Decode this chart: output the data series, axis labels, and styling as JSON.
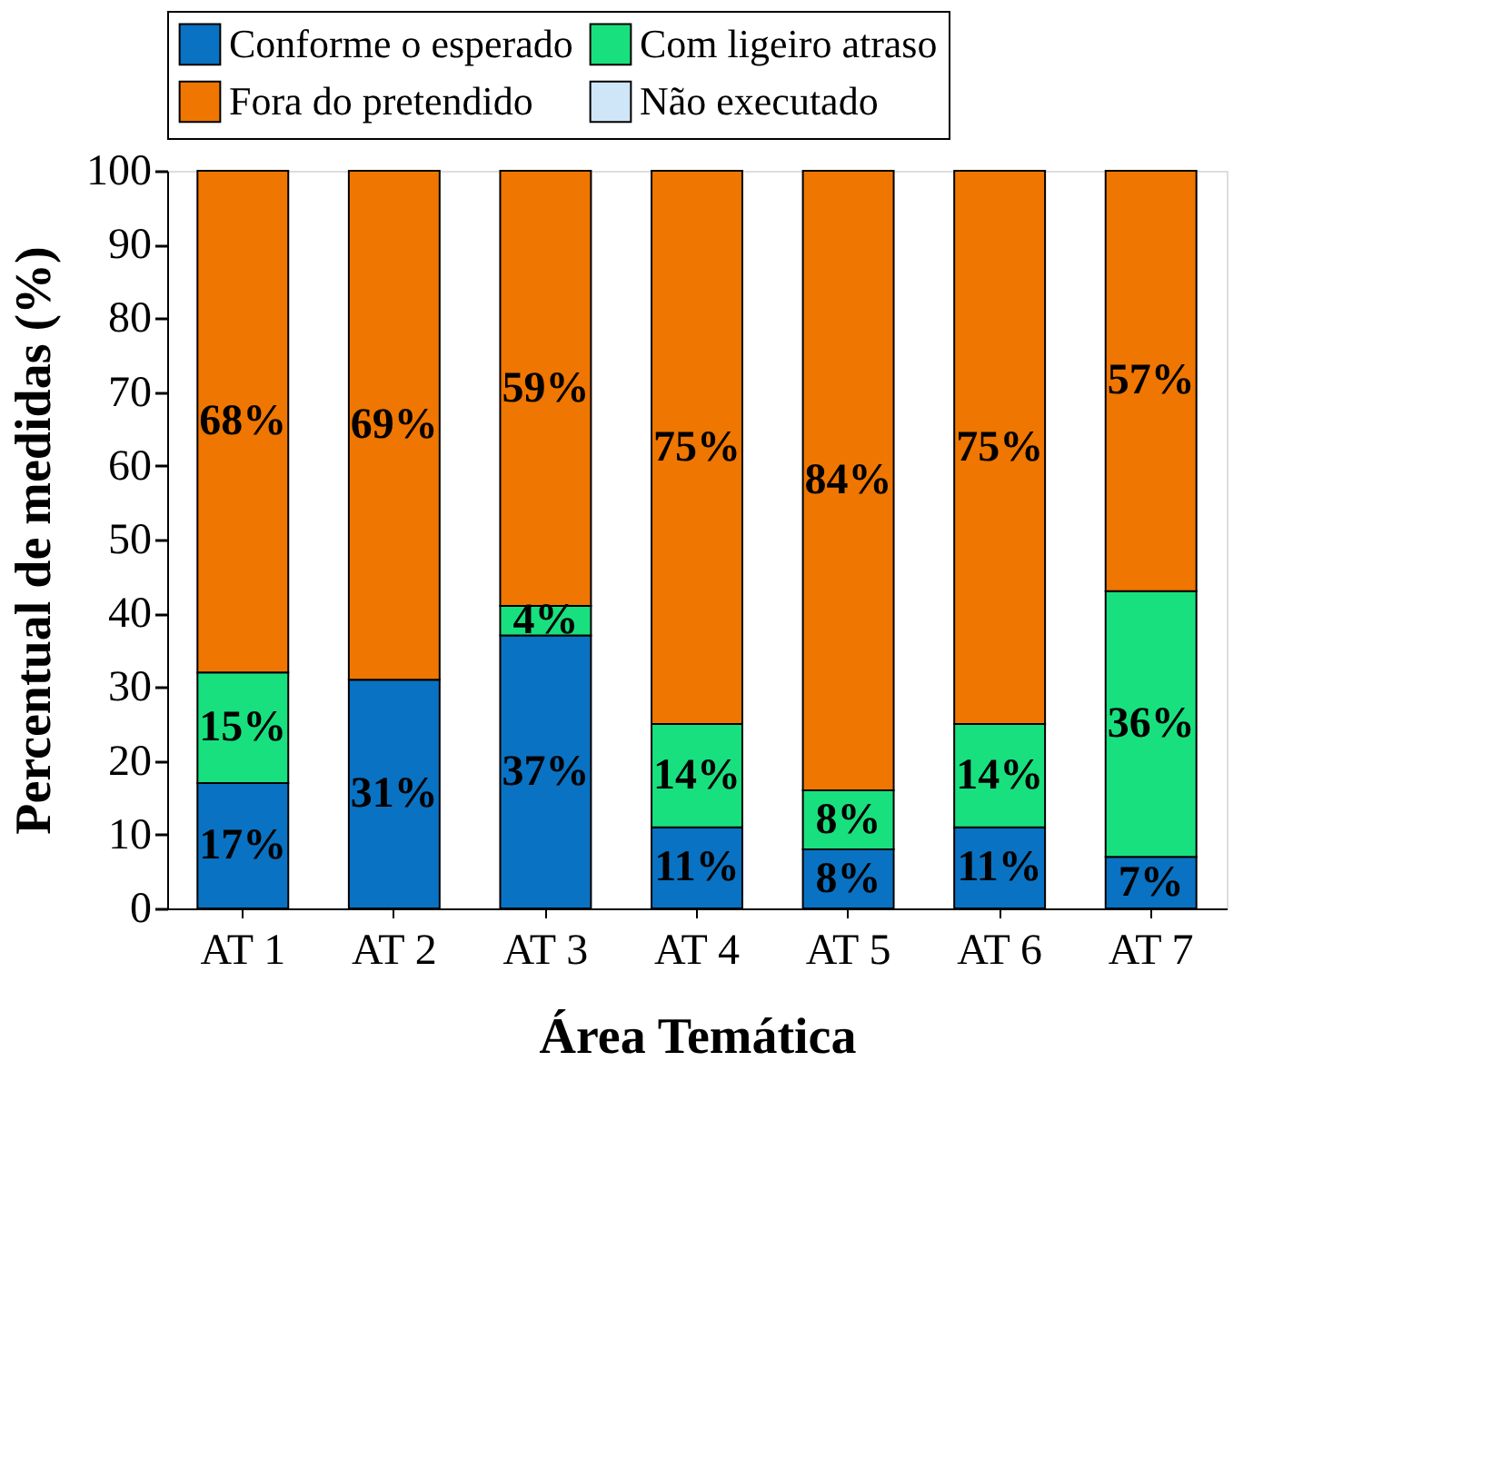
{
  "chart_data": {
    "type": "bar",
    "stacked": true,
    "xlabel": "Área Temática",
    "ylabel": "Percentual de medidas (%)",
    "categories": [
      "AT 1",
      "AT 2",
      "AT 3",
      "AT 4",
      "AT 5",
      "AT 6",
      "AT 7"
    ],
    "series": [
      {
        "name": "Conforme o esperado",
        "color": "#0a72c2",
        "values": [
          17,
          31,
          37,
          11,
          8,
          11,
          7
        ],
        "value_labels": [
          "17%",
          "31%",
          "37%",
          "11%",
          "8%",
          "11%",
          "7%"
        ]
      },
      {
        "name": "Com ligeiro atraso",
        "color": "#19e07e",
        "values": [
          15,
          0,
          4,
          14,
          8,
          14,
          36
        ],
        "value_labels": [
          "15%",
          null,
          "4%",
          "14%",
          "8%",
          "14%",
          "36%"
        ]
      },
      {
        "name": "Fora do pretendido",
        "color": "#ef7600",
        "values": [
          68,
          69,
          59,
          75,
          84,
          75,
          57
        ],
        "value_labels": [
          "68%",
          "69%",
          "59%",
          "75%",
          "84%",
          "75%",
          "57%"
        ]
      },
      {
        "name": "Não executado",
        "color": "#cfe6f8",
        "values": [
          0,
          0,
          0,
          0,
          0,
          0,
          0
        ],
        "value_labels": [
          null,
          null,
          null,
          null,
          null,
          null,
          null
        ]
      }
    ],
    "ylim": [
      0,
      100
    ],
    "yticks": [
      0,
      10,
      20,
      30,
      40,
      50,
      60,
      70,
      80,
      90,
      100
    ],
    "grid": false,
    "legend": "top"
  }
}
